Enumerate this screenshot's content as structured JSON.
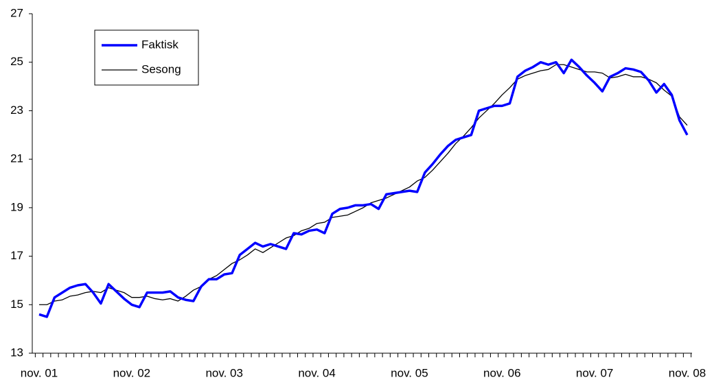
{
  "chart_data": {
    "type": "line",
    "categories": [
      "nov. 01",
      null,
      null,
      null,
      null,
      null,
      null,
      null,
      null,
      null,
      null,
      null,
      "nov. 02",
      null,
      null,
      null,
      null,
      null,
      null,
      null,
      null,
      null,
      null,
      null,
      "nov. 03",
      null,
      null,
      null,
      null,
      null,
      null,
      null,
      null,
      null,
      null,
      null,
      "nov. 04",
      null,
      null,
      null,
      null,
      null,
      null,
      null,
      null,
      null,
      null,
      null,
      "nov. 05",
      null,
      null,
      null,
      null,
      null,
      null,
      null,
      null,
      null,
      null,
      null,
      "nov. 06",
      null,
      null,
      null,
      null,
      null,
      null,
      null,
      null,
      null,
      null,
      null,
      "nov. 07",
      null,
      null,
      null,
      null,
      null,
      null,
      null,
      null,
      null,
      null,
      null,
      "nov. 08"
    ],
    "series": [
      {
        "name": "Faktisk",
        "color": "#0000ff",
        "width": 3.5,
        "values": [
          14.6,
          14.5,
          15.3,
          15.5,
          15.7,
          15.8,
          15.85,
          15.5,
          15.05,
          15.85,
          15.55,
          15.25,
          15.0,
          14.9,
          15.5,
          15.5,
          15.5,
          15.55,
          15.3,
          15.2,
          15.15,
          15.75,
          16.05,
          16.05,
          16.25,
          16.3,
          17.05,
          17.3,
          17.55,
          17.4,
          17.5,
          17.4,
          17.3,
          17.95,
          17.9,
          18.05,
          18.1,
          17.95,
          18.75,
          18.95,
          19.0,
          19.1,
          19.1,
          19.15,
          18.95,
          19.55,
          19.6,
          19.65,
          19.7,
          19.65,
          20.45,
          20.8,
          21.2,
          21.55,
          21.8,
          21.9,
          22.0,
          23.0,
          23.1,
          23.2,
          23.2,
          23.3,
          24.4,
          24.65,
          24.8,
          25.0,
          24.9,
          25.0,
          24.55,
          25.1,
          24.8,
          24.45,
          24.15,
          23.8,
          24.4,
          24.55,
          24.75,
          24.7,
          24.6,
          24.25,
          23.75,
          24.1,
          23.65,
          22.6,
          22.0
        ]
      },
      {
        "name": "Sesong",
        "color": "#000000",
        "width": 1.3,
        "values": [
          15.0,
          15.0,
          15.15,
          15.2,
          15.35,
          15.4,
          15.5,
          15.55,
          15.5,
          15.7,
          15.6,
          15.5,
          15.3,
          15.3,
          15.35,
          15.25,
          15.2,
          15.25,
          15.15,
          15.35,
          15.6,
          15.75,
          16.05,
          16.2,
          16.45,
          16.7,
          16.85,
          17.05,
          17.3,
          17.15,
          17.35,
          17.55,
          17.75,
          17.85,
          18.05,
          18.15,
          18.35,
          18.4,
          18.6,
          18.65,
          18.7,
          18.85,
          19.0,
          19.2,
          19.3,
          19.4,
          19.55,
          19.7,
          19.85,
          20.1,
          20.25,
          20.55,
          20.9,
          21.25,
          21.65,
          21.95,
          22.3,
          22.7,
          23.0,
          23.3,
          23.65,
          23.95,
          24.3,
          24.45,
          24.55,
          24.65,
          24.7,
          24.9,
          24.9,
          24.8,
          24.7,
          24.6,
          24.6,
          24.55,
          24.35,
          24.4,
          24.5,
          24.4,
          24.4,
          24.3,
          24.15,
          23.85,
          23.6,
          22.75,
          22.4
        ]
      }
    ],
    "ylim": [
      13,
      27
    ],
    "yticks": [
      13,
      15,
      17,
      19,
      21,
      23,
      25,
      27
    ],
    "grid": false,
    "legend": "upper left"
  }
}
